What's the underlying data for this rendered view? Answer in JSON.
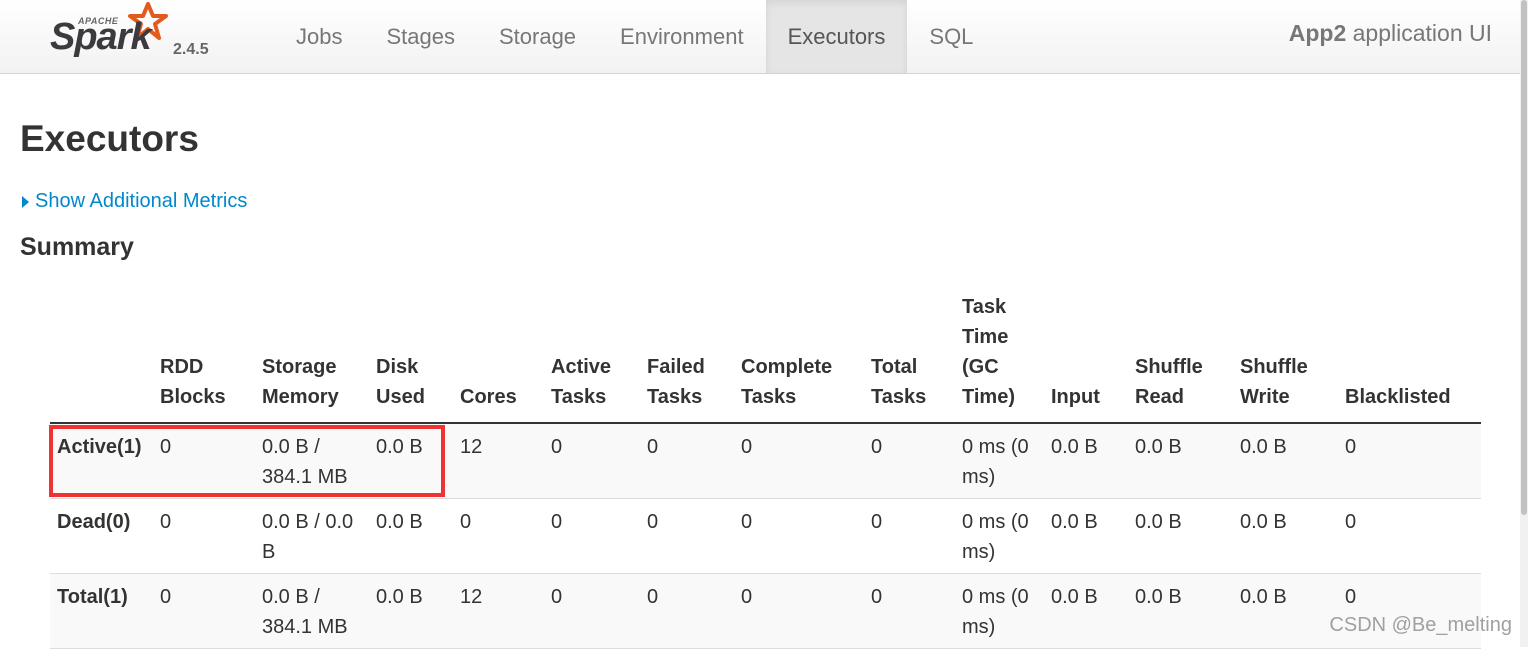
{
  "brand": {
    "apache": "APACHE",
    "name": "Spark",
    "version": "2.4.5"
  },
  "nav": {
    "items": [
      {
        "label": "Jobs"
      },
      {
        "label": "Stages"
      },
      {
        "label": "Storage"
      },
      {
        "label": "Environment"
      },
      {
        "label": "Executors",
        "active": true
      },
      {
        "label": "SQL"
      }
    ]
  },
  "app": {
    "name": "App2",
    "suffix": " application UI"
  },
  "page": {
    "title": "Executors",
    "show_metrics": "Show Additional Metrics",
    "summary": "Summary"
  },
  "table": {
    "headers": [
      "",
      "RDD Blocks",
      "Storage Memory",
      "Disk Used",
      "Cores",
      "Active Tasks",
      "Failed Tasks",
      "Complete Tasks",
      "Total Tasks",
      "Task Time (GC Time)",
      "Input",
      "Shuffle Read",
      "Shuffle Write",
      "Blacklisted"
    ],
    "rows": [
      [
        "Active(1)",
        "0",
        "0.0 B / 384.1 MB",
        "0.0 B",
        "12",
        "0",
        "0",
        "0",
        "0",
        "0 ms (0 ms)",
        "0.0 B",
        "0.0 B",
        "0.0 B",
        "0"
      ],
      [
        "Dead(0)",
        "0",
        "0.0 B / 0.0 B",
        "0.0 B",
        "0",
        "0",
        "0",
        "0",
        "0",
        "0 ms (0 ms)",
        "0.0 B",
        "0.0 B",
        "0.0 B",
        "0"
      ],
      [
        "Total(1)",
        "0",
        "0.0 B / 384.1 MB",
        "0.0 B",
        "12",
        "0",
        "0",
        "0",
        "0",
        "0 ms (0 ms)",
        "0.0 B",
        "0.0 B",
        "0.0 B",
        "0"
      ]
    ]
  },
  "watermark": "CSDN @Be_melting",
  "colors": {
    "link": "#0088cc",
    "highlight": "#ee3333",
    "spark_star": "#e25a1c"
  }
}
